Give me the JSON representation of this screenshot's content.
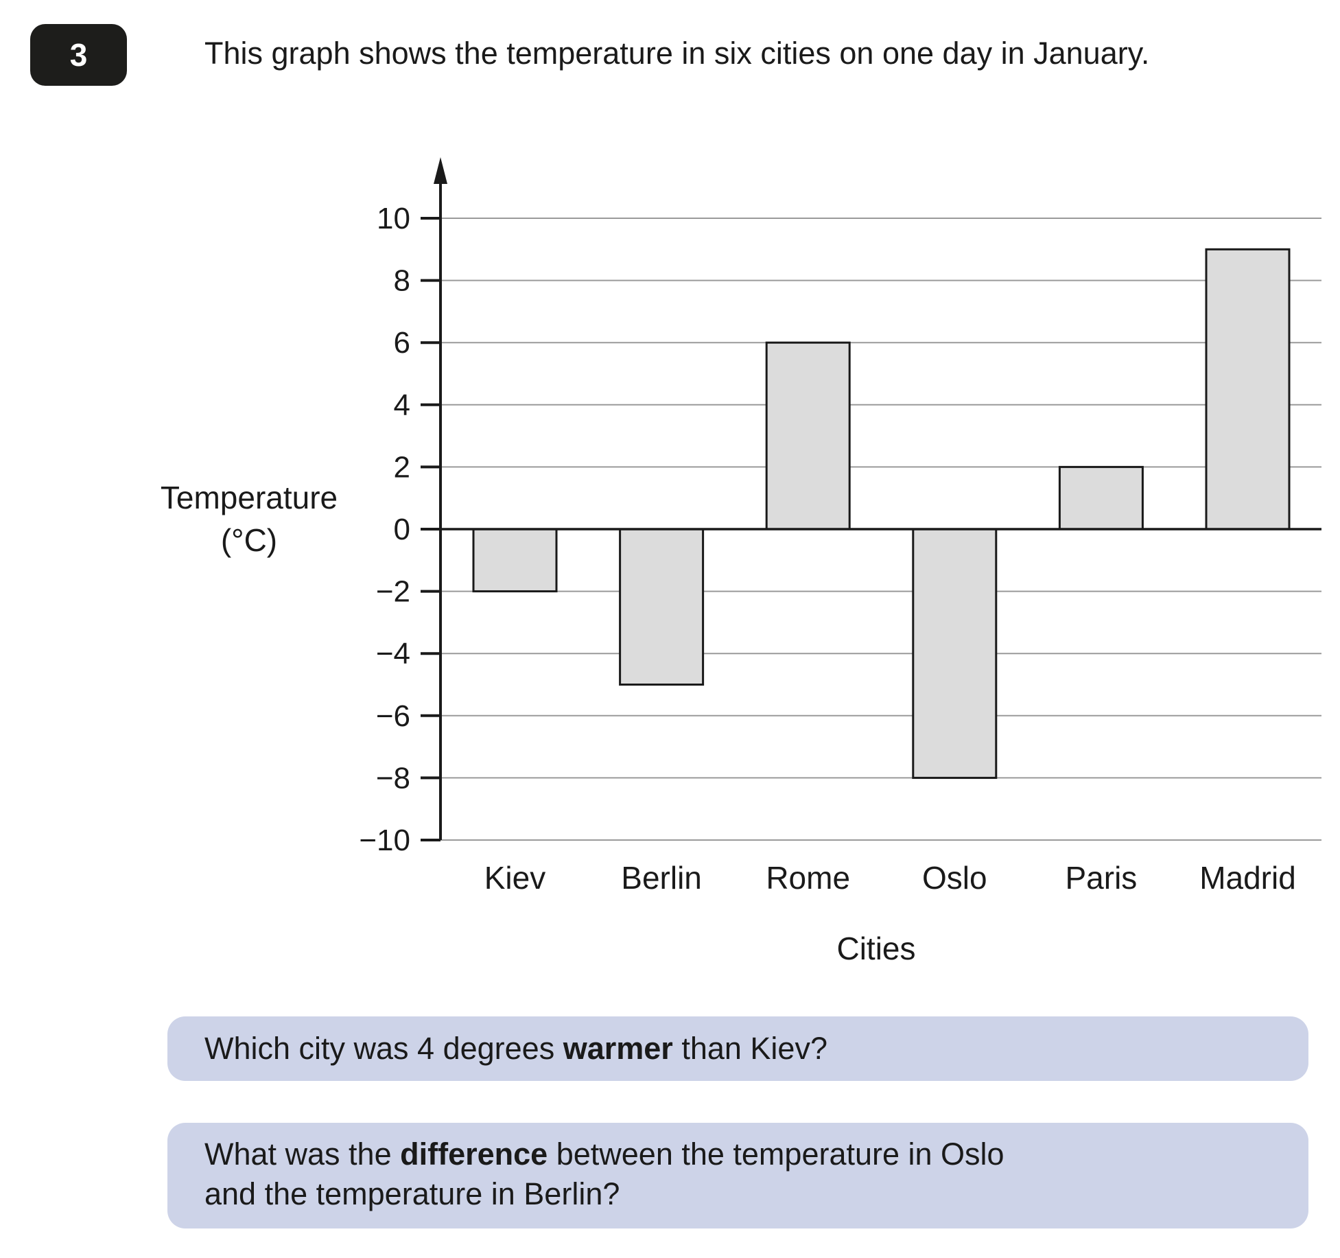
{
  "question_number": "3",
  "intro": "This graph shows the temperature in six cities on one day in January.",
  "questions": [
    {
      "before": "Which city was 4 degrees ",
      "bold": "warmer",
      "after": " than Kiev?"
    },
    {
      "before": "What was the ",
      "bold": "difference",
      "after": " between the temperature in Oslo",
      "line2": "and the temperature in Berlin?"
    }
  ],
  "chart_data": {
    "type": "bar",
    "title": "",
    "xlabel": "Cities",
    "ylabel_line1": "Temperature",
    "ylabel_line2": "(°C)",
    "categories": [
      "Kiev",
      "Berlin",
      "Rome",
      "Oslo",
      "Paris",
      "Madrid"
    ],
    "values": [
      -2,
      -5,
      6,
      -8,
      2,
      9
    ],
    "ylim": [
      -10,
      10
    ],
    "yticks": [
      10,
      8,
      6,
      4,
      2,
      0,
      -2,
      -4,
      -6,
      -8,
      -10
    ],
    "ytick_labels": [
      "10",
      "8",
      "6",
      "4",
      "2",
      "0",
      "−2",
      "−4",
      "−6",
      "−8",
      "−10"
    ],
    "grid": true,
    "bar_color": "#dcdcdc",
    "grid_color": "#9a9a9a"
  },
  "colors": {
    "badge": "#1d1d1b",
    "question_box": "#cdd3e8"
  }
}
